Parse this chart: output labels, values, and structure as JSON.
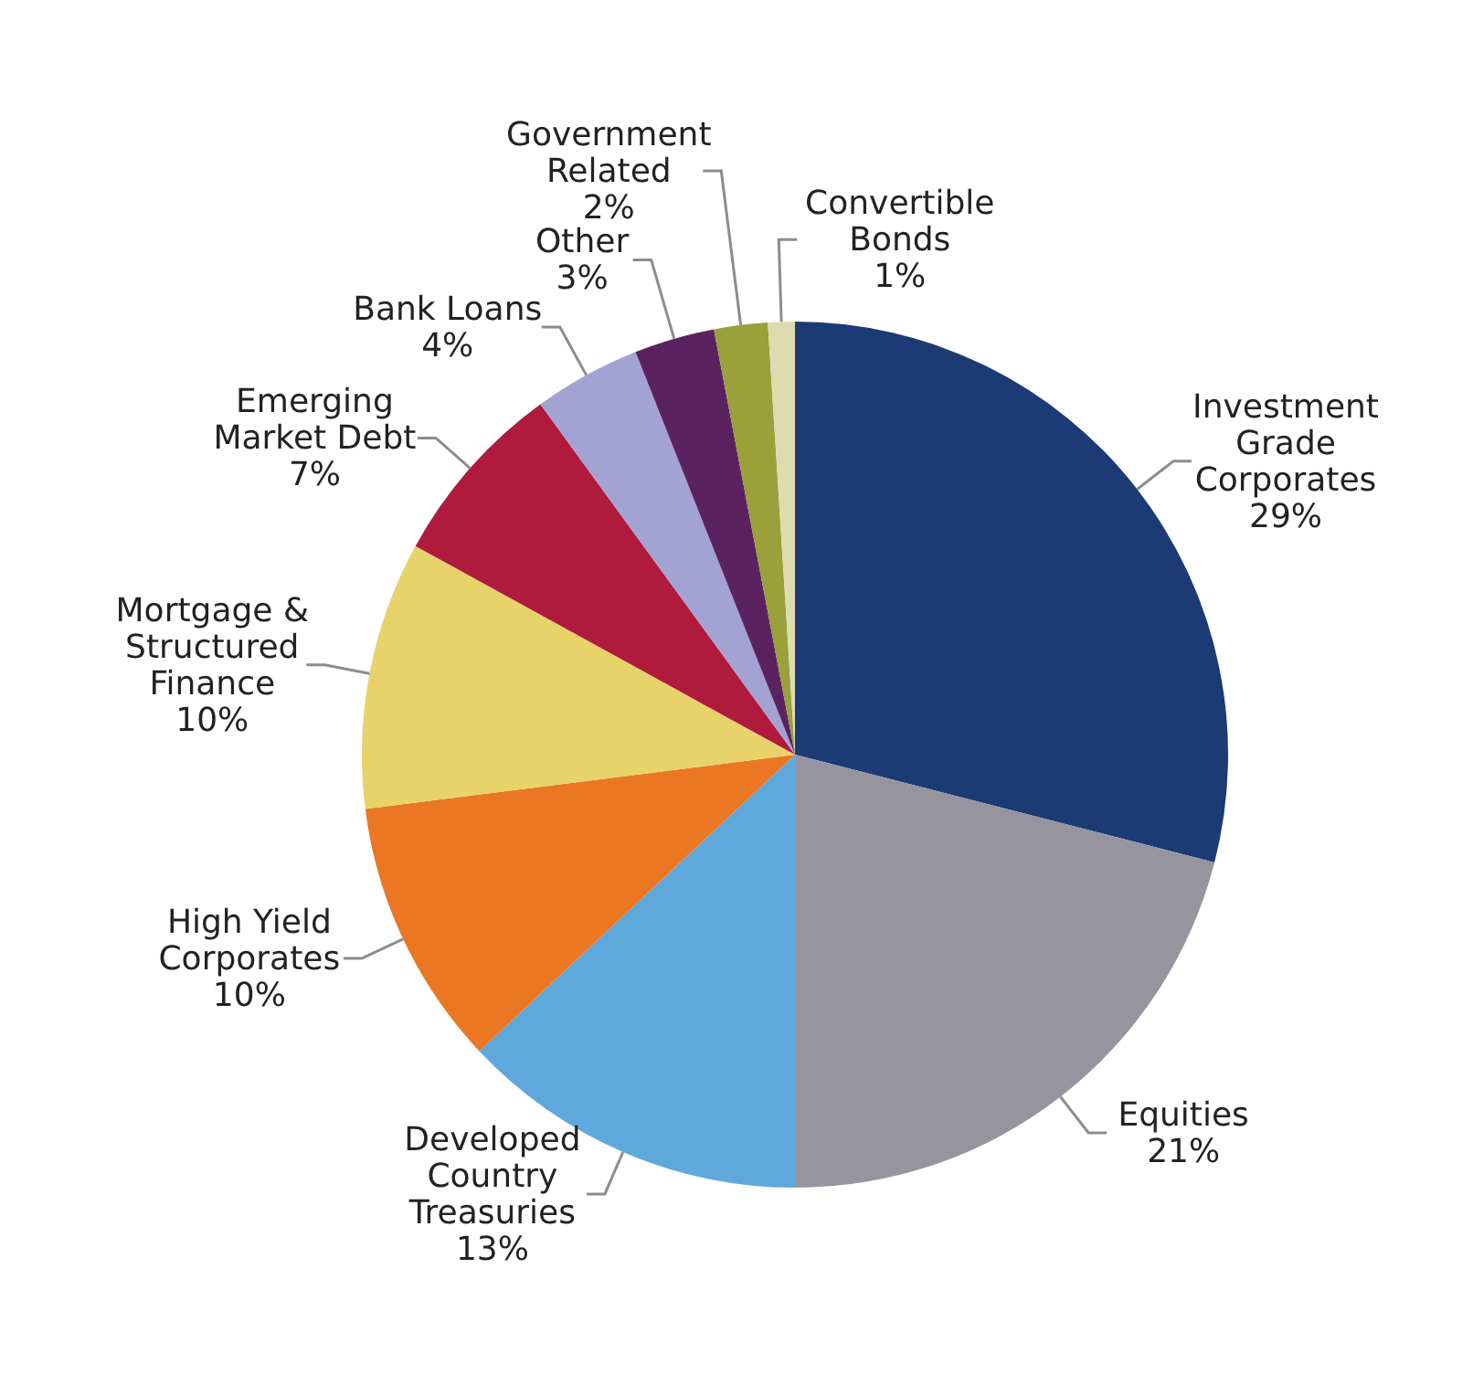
{
  "chart_data": {
    "type": "pie",
    "categories": [
      "Investment Grade Corporates",
      "Equities",
      "Developed Country Treasuries",
      "High Yield Corporates",
      "Mortgage & Structured Finance",
      "Emerging Market Debt",
      "Bank Loans",
      "Other",
      "Government Related",
      "Convertible Bonds"
    ],
    "values": [
      29,
      21,
      13,
      10,
      10,
      7,
      4,
      3,
      2,
      1
    ],
    "value_labels": [
      "29%",
      "21%",
      "13%",
      "10%",
      "10%",
      "7%",
      "4%",
      "3%",
      "2%",
      "1%"
    ],
    "colors": [
      "#1c3a73",
      "#96959f",
      "#5fa8dc",
      "#ec7723",
      "#e8d36a",
      "#b01a3c",
      "#a3a3d3",
      "#5b2260",
      "#9aa03a",
      "#dcdcb0"
    ]
  }
}
